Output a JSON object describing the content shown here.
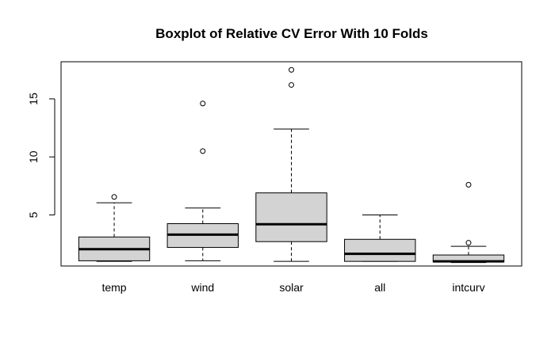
{
  "chart_data": {
    "type": "boxplot",
    "title": "Boxplot of Relative CV Error With 10 Folds",
    "xlabel": "",
    "ylabel": "",
    "ylim": [
      0.6,
      18.2
    ],
    "yticks": [
      5,
      10,
      15
    ],
    "grid": false,
    "categories": [
      "temp",
      "wind",
      "solar",
      "all",
      "intcurv"
    ],
    "boxes": [
      {
        "name": "temp",
        "min": 1.0,
        "q1": 1.05,
        "median": 2.05,
        "q3": 3.1,
        "max": 6.05,
        "outliers": [
          6.55
        ]
      },
      {
        "name": "wind",
        "min": 1.05,
        "q1": 2.2,
        "median": 3.3,
        "q3": 4.25,
        "max": 5.6,
        "outliers": [
          10.5,
          14.6
        ]
      },
      {
        "name": "solar",
        "min": 1.0,
        "q1": 2.7,
        "median": 4.2,
        "q3": 6.9,
        "max": 12.4,
        "outliers": [
          16.2,
          17.5
        ]
      },
      {
        "name": "all",
        "min": 1.0,
        "q1": 1.0,
        "median": 1.65,
        "q3": 2.9,
        "max": 5.0,
        "outliers": []
      },
      {
        "name": "intcurv",
        "min": 0.9,
        "q1": 0.95,
        "median": 1.0,
        "q3": 1.55,
        "max": 2.3,
        "outliers": [
          2.6,
          7.6
        ]
      }
    ],
    "box_fill": "#d3d3d3",
    "stroke": "#000000"
  }
}
